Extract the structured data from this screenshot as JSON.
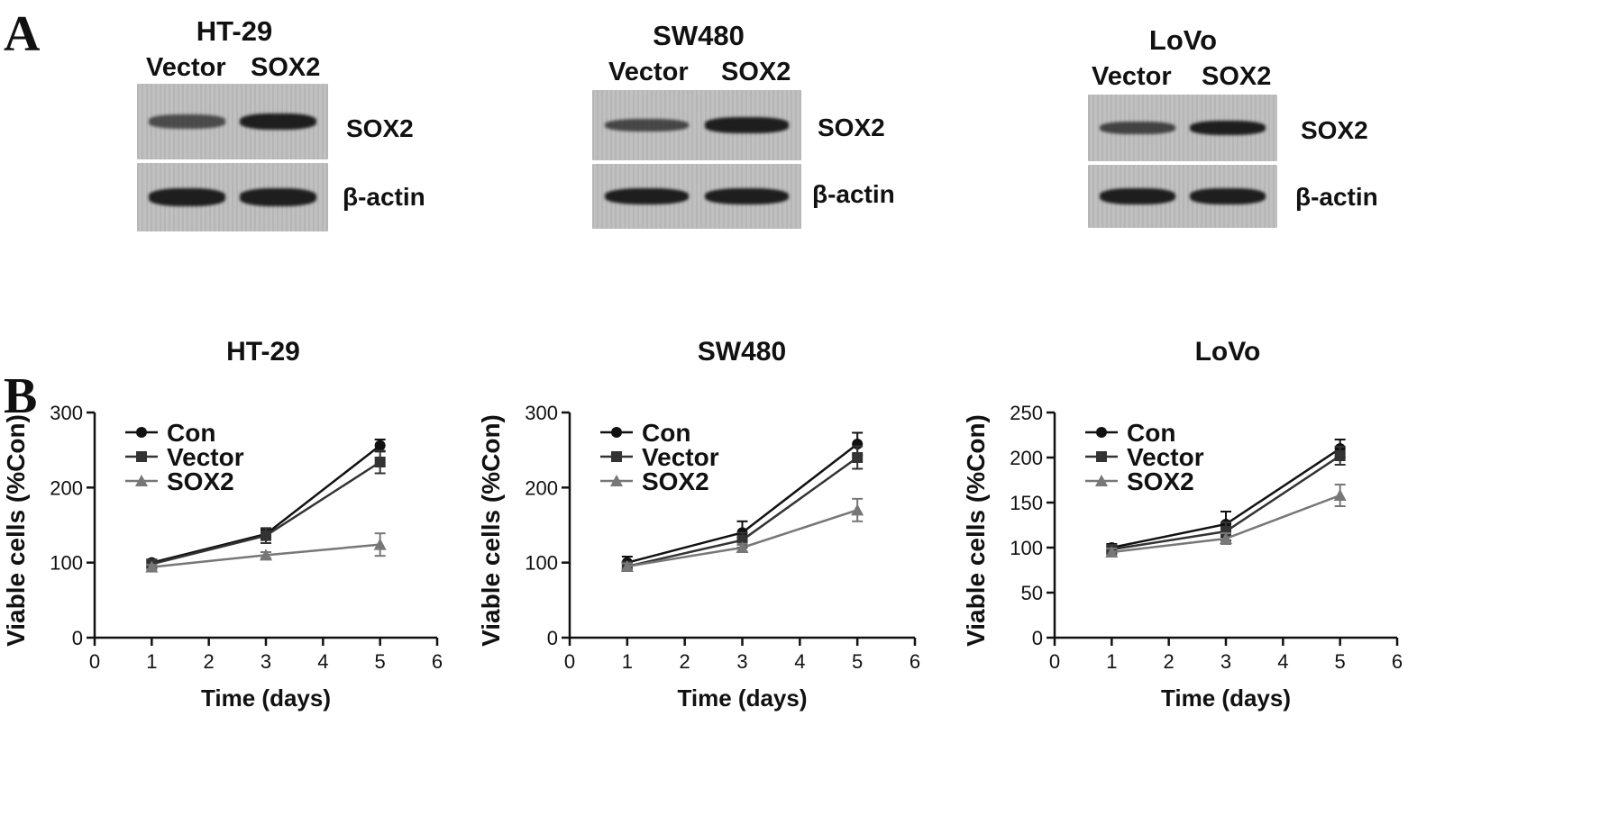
{
  "panel_labels": {
    "a": "A",
    "b": "B"
  },
  "blots": [
    {
      "title": "HT-29",
      "lanes": [
        "Vector",
        "SOX2"
      ],
      "bands": [
        "SOX2",
        "β-actin"
      ],
      "sox2_intensity": [
        0.55,
        1.0
      ]
    },
    {
      "title": "SW480",
      "lanes": [
        "Vector",
        "SOX2"
      ],
      "bands": [
        "SOX2",
        "β-actin"
      ],
      "sox2_intensity": [
        0.6,
        1.0
      ]
    },
    {
      "title": "LoVo",
      "lanes": [
        "Vector",
        "SOX2"
      ],
      "bands": [
        "SOX2",
        "β-actin"
      ],
      "sox2_intensity": [
        0.65,
        1.0
      ]
    }
  ],
  "colors": {
    "con": "#111111",
    "vector": "#333333",
    "sox2": "#777777",
    "blot_bg": "#bdbdbd",
    "band": "#1e1e1e"
  },
  "chart_data": [
    {
      "type": "line",
      "title": "HT-29",
      "xlabel": "Time (days)",
      "ylabel": "Viable cells (%Con)",
      "xlim": [
        0,
        6
      ],
      "ylim": [
        0,
        300
      ],
      "xticks": [
        0,
        1,
        2,
        3,
        4,
        5,
        6
      ],
      "yticks": [
        0,
        100,
        200,
        300
      ],
      "legend": "top-left",
      "x": [
        1,
        3,
        5
      ],
      "series": [
        {
          "name": "Con",
          "marker": "circle",
          "values": [
            100,
            138,
            256
          ],
          "err": [
            4,
            6,
            8
          ]
        },
        {
          "name": "Vector",
          "marker": "square",
          "values": [
            98,
            136,
            234
          ],
          "err": [
            4,
            10,
            15
          ]
        },
        {
          "name": "SOX2",
          "marker": "triangle",
          "values": [
            94,
            110,
            124
          ],
          "err": [
            3,
            4,
            15
          ]
        }
      ]
    },
    {
      "type": "line",
      "title": "SW480",
      "xlabel": "Time (days)",
      "ylabel": "Viable cells (%Con)",
      "xlim": [
        0,
        6
      ],
      "ylim": [
        0,
        300
      ],
      "xticks": [
        0,
        1,
        2,
        3,
        4,
        5,
        6
      ],
      "yticks": [
        0,
        100,
        200,
        300
      ],
      "legend": "top-left",
      "x": [
        1,
        3,
        5
      ],
      "series": [
        {
          "name": "Con",
          "marker": "circle",
          "values": [
            100,
            140,
            258
          ],
          "err": [
            8,
            15,
            15
          ]
        },
        {
          "name": "Vector",
          "marker": "square",
          "values": [
            95,
            130,
            240
          ],
          "err": [
            6,
            10,
            15
          ]
        },
        {
          "name": "SOX2",
          "marker": "triangle",
          "values": [
            95,
            120,
            170
          ],
          "err": [
            4,
            5,
            15
          ]
        }
      ]
    },
    {
      "type": "line",
      "title": "LoVo",
      "xlabel": "Time (days)",
      "ylabel": "Viable cells (%Con)",
      "xlim": [
        0,
        6
      ],
      "ylim": [
        0,
        250
      ],
      "xticks": [
        0,
        1,
        2,
        3,
        4,
        5,
        6
      ],
      "yticks": [
        0,
        50,
        100,
        150,
        200,
        250
      ],
      "legend": "top-left",
      "x": [
        1,
        3,
        5
      ],
      "series": [
        {
          "name": "Con",
          "marker": "circle",
          "values": [
            100,
            126,
            210
          ],
          "err": [
            4,
            14,
            10
          ]
        },
        {
          "name": "Vector",
          "marker": "square",
          "values": [
            98,
            118,
            202
          ],
          "err": [
            4,
            10,
            10
          ]
        },
        {
          "name": "SOX2",
          "marker": "triangle",
          "values": [
            95,
            110,
            158
          ],
          "err": [
            4,
            6,
            12
          ]
        }
      ]
    }
  ]
}
